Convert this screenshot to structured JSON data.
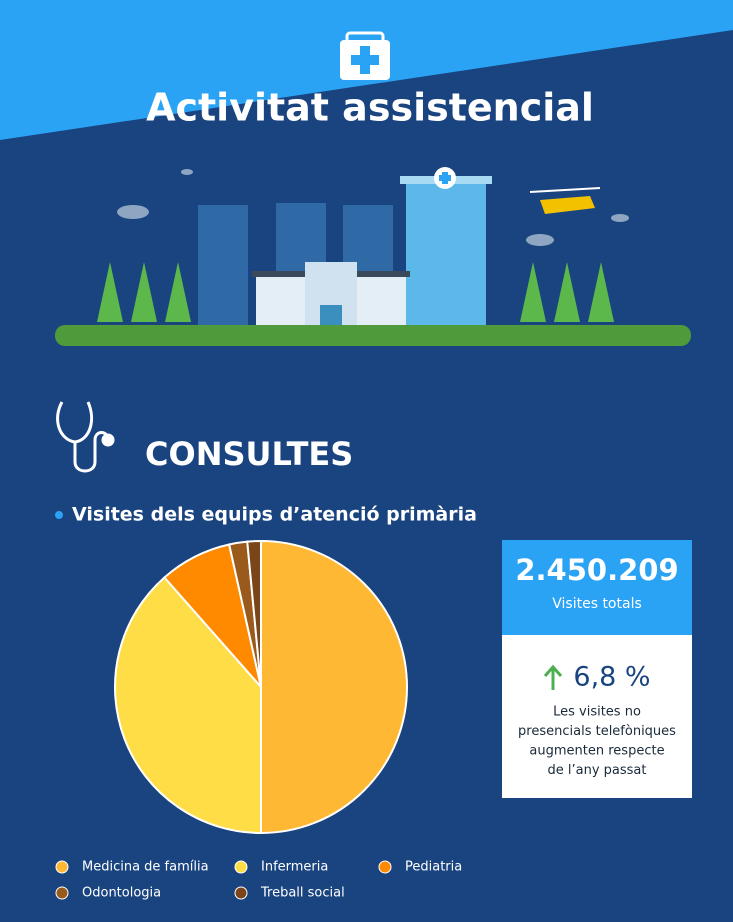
{
  "header": {
    "title": "Activitat assistencial"
  },
  "section": {
    "title": "CONSULTES"
  },
  "chart_data": {
    "type": "pie",
    "title": "Visites dels equips d’atenció primària",
    "categories": [
      "Medicina de família",
      "Infermeria",
      "Pediatria",
      "Odontologia",
      "Treball social"
    ],
    "values": [
      50,
      38.5,
      8,
      2,
      1.5
    ],
    "colors": [
      "#ffb833",
      "#ffdd47",
      "#ff8a00",
      "#9a5a1c",
      "#7a4518"
    ],
    "legend": "bottom"
  },
  "stats": {
    "total": "2.450.209",
    "total_label": "Visites totals",
    "change": "6,8 %",
    "change_text": [
      "Les visites no",
      "presencials telefòniques",
      "augmenten respecte",
      "de l’any passat"
    ]
  }
}
